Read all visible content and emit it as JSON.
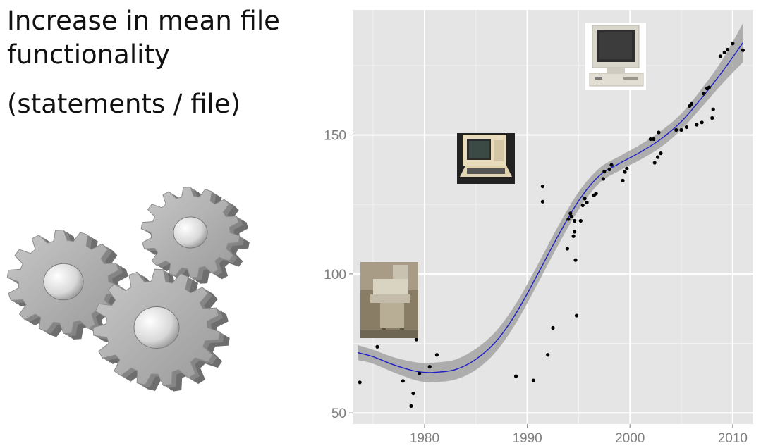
{
  "title_lines": [
    "Increase in mean file",
    "functionality"
  ],
  "subtitle": "(statements / file)",
  "icons": [
    "gears-icon",
    "teletype-terminal-icon",
    "video-terminal-icon",
    "desktop-computer-icon"
  ],
  "colors": {
    "panel": "#e5e5e5",
    "grid": "#ffffff",
    "smooth_line": "#2020c8",
    "ribbon": "#9a9a9a",
    "points": "#000000",
    "tick_text": "#7f7f7f"
  },
  "chart_data": {
    "type": "scatter",
    "xlim": [
      1973,
      2012
    ],
    "ylim": [
      46,
      195
    ],
    "x_ticks": [
      1980,
      1990,
      2000,
      2010
    ],
    "y_ticks": [
      50,
      100,
      150
    ],
    "x_tick_labels": [
      "1980",
      "1990",
      "2000",
      "2010"
    ],
    "y_tick_labels": [
      "50",
      "100",
      "150"
    ],
    "grid": true,
    "points": [
      [
        1973.7,
        61.0
      ],
      [
        1975.4,
        73.8
      ],
      [
        1977.9,
        61.5
      ],
      [
        1978.7,
        52.5
      ],
      [
        1978.9,
        57.0
      ],
      [
        1979.2,
        76.4
      ],
      [
        1979.5,
        64.2
      ],
      [
        1980.5,
        66.6
      ],
      [
        1981.2,
        70.9
      ],
      [
        1988.9,
        63.2
      ],
      [
        1990.6,
        61.7
      ],
      [
        1991.5,
        131.5
      ],
      [
        1991.5,
        126.0
      ],
      [
        1992.0,
        70.9
      ],
      [
        1992.5,
        80.6
      ],
      [
        1993.9,
        109.1
      ],
      [
        1994.0,
        119.7
      ],
      [
        1994.2,
        121.8
      ],
      [
        1994.3,
        120.7
      ],
      [
        1994.5,
        113.6
      ],
      [
        1994.6,
        119.1
      ],
      [
        1994.6,
        115.2
      ],
      [
        1994.7,
        105.0
      ],
      [
        1994.8,
        85.0
      ],
      [
        1995.2,
        119.1
      ],
      [
        1995.4,
        124.7
      ],
      [
        1995.6,
        127.1
      ],
      [
        1995.8,
        125.7
      ],
      [
        1996.5,
        128.3
      ],
      [
        1996.7,
        128.9
      ],
      [
        1997.4,
        134.2
      ],
      [
        1997.5,
        136.8
      ],
      [
        1998.0,
        137.6
      ],
      [
        1998.2,
        139.2
      ],
      [
        1999.3,
        133.6
      ],
      [
        1999.5,
        136.7
      ],
      [
        1999.7,
        137.9
      ],
      [
        2002.0,
        148.5
      ],
      [
        2002.3,
        148.5
      ],
      [
        2002.4,
        140.0
      ],
      [
        2002.7,
        142.0
      ],
      [
        2002.8,
        150.9
      ],
      [
        2003.0,
        143.4
      ],
      [
        2004.5,
        151.8
      ],
      [
        2005.0,
        151.8
      ],
      [
        2005.5,
        152.8
      ],
      [
        2005.8,
        160.4
      ],
      [
        2006.0,
        161.2
      ],
      [
        2006.5,
        153.7
      ],
      [
        2007.0,
        154.5
      ],
      [
        2007.2,
        164.9
      ],
      [
        2007.5,
        166.7
      ],
      [
        2007.7,
        167.1
      ],
      [
        2008.0,
        156.1
      ],
      [
        2008.1,
        159.2
      ],
      [
        2008.8,
        178.3
      ],
      [
        2009.2,
        179.7
      ],
      [
        2009.5,
        180.7
      ],
      [
        2010.0,
        182.9
      ],
      [
        2011.0,
        180.5
      ]
    ],
    "smooth": {
      "x": [
        1973.5,
        1975,
        1977,
        1979,
        1980,
        1981,
        1983,
        1985,
        1987,
        1989,
        1991,
        1993,
        1995,
        1997,
        1999,
        2001,
        2003,
        2005,
        2007,
        2009,
        2011
      ],
      "y": [
        71.7,
        70.2,
        67.3,
        65.1,
        64.6,
        64.6,
        65.6,
        69.3,
        75.9,
        86.4,
        99.8,
        113.7,
        126.3,
        135.3,
        139.8,
        143.8,
        148.5,
        154.8,
        163.4,
        172.8,
        183.2
      ],
      "lower": [
        69.0,
        67.7,
        64.6,
        61.9,
        61.2,
        61.1,
        62.0,
        65.5,
        72.2,
        82.9,
        96.4,
        110.3,
        123.1,
        132.6,
        137.2,
        141.1,
        145.6,
        151.9,
        160.1,
        168.5,
        176.2
      ],
      "upper": [
        74.4,
        72.7,
        70.0,
        68.3,
        68.0,
        68.1,
        69.2,
        73.1,
        79.6,
        89.9,
        103.2,
        117.1,
        129.5,
        138.0,
        142.4,
        146.5,
        151.4,
        157.7,
        166.7,
        177.1,
        190.2
      ]
    }
  }
}
